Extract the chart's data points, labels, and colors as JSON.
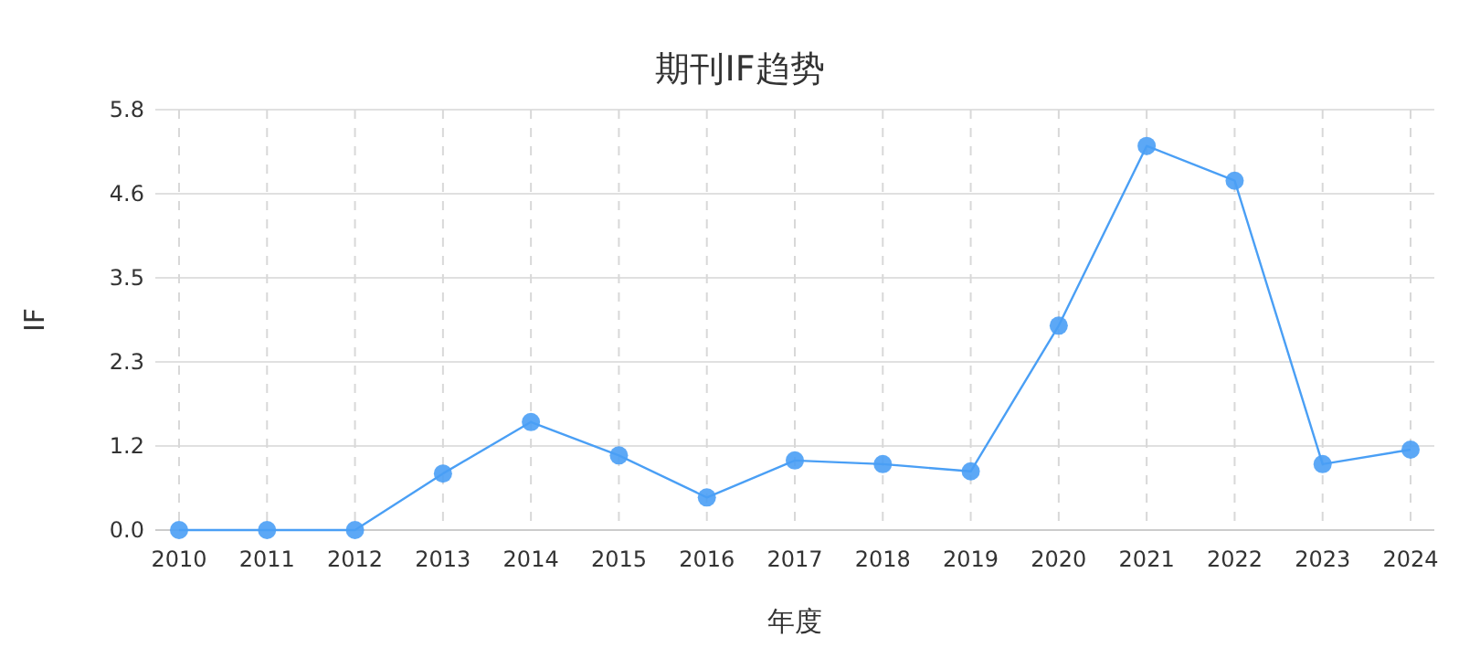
{
  "chart_data": {
    "type": "line",
    "title": "期刊IF趋势",
    "xlabel": "年度",
    "ylabel": "IF",
    "categories": [
      "2010",
      "2011",
      "2012",
      "2013",
      "2014",
      "2015",
      "2016",
      "2017",
      "2018",
      "2019",
      "2020",
      "2021",
      "2022",
      "2023",
      "2024"
    ],
    "series": [
      {
        "color": "#4a9ff5",
        "values": [
          0,
          0,
          0,
          0.78,
          1.49,
          1.03,
          0.45,
          0.96,
          0.91,
          0.81,
          2.82,
          5.3,
          4.82,
          0.91,
          1.11
        ]
      }
    ],
    "ylim": [
      0,
      5.8
    ],
    "yticks": [
      {
        "value": 0,
        "label": "0.0"
      },
      {
        "value": 1.16,
        "label": "1.2"
      },
      {
        "value": 2.32,
        "label": "2.3"
      },
      {
        "value": 3.48,
        "label": "3.5"
      },
      {
        "value": 4.64,
        "label": "4.6"
      },
      {
        "value": 5.8,
        "label": "5.8"
      }
    ],
    "grid": true,
    "marker": "circle",
    "line_style": "solid"
  }
}
